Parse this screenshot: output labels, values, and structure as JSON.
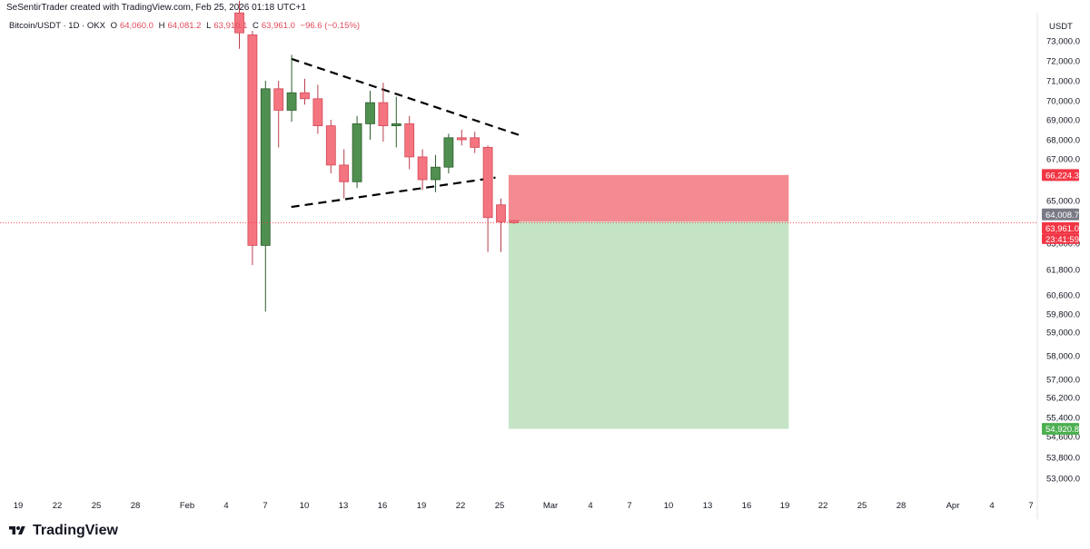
{
  "header": {
    "credit": "SeSentirTrader created with TradingView.com, Feb 25, 2026 01:18 UTC+1",
    "symbol": "Bitcoin/USDT · 1D · OKX",
    "ohlc": {
      "open_label": "O",
      "open": "64,060.0",
      "high_label": "H",
      "high": "64,081.2",
      "low_label": "L",
      "low": "63,910.1",
      "close_label": "C",
      "close": "63,961.0",
      "change": "−96.6 (−0.15%)"
    }
  },
  "currency": "USDT",
  "brand": {
    "name": "TradingView"
  },
  "colors": {
    "up": "#4f8f4f",
    "down": "#f4747f",
    "stop_zone": "#f48b92",
    "target_zone": "#c4e4c5",
    "price_line": "#f23645",
    "grid_text": "#131722"
  },
  "chart_data": {
    "type": "candlestick",
    "y_axis_ticks": [
      "73,000.0",
      "72,000.0",
      "71,000.0",
      "70,000.0",
      "69,000.0",
      "68,000.0",
      "67,000.0",
      "65,000.0",
      "63,000.0",
      "61,800.0",
      "60,600.0",
      "59,800.0",
      "59,000.0",
      "58,000.0",
      "57,000.0",
      "56,200.0",
      "55,400.0",
      "54,600.0",
      "53,800.0",
      "53,000.0"
    ],
    "x_axis_ticks": [
      "19",
      "22",
      "25",
      "28",
      "Feb",
      "4",
      "7",
      "10",
      "13",
      "16",
      "19",
      "22",
      "25",
      "Mar",
      "4",
      "7",
      "10",
      "13",
      "16",
      "19",
      "22",
      "25",
      "28",
      "Apr",
      "4",
      "7"
    ],
    "candles": [
      {
        "date": "Feb 4",
        "o": 74400,
        "h": 75000,
        "l": 72600,
        "c": 73400
      },
      {
        "date": "Feb 5",
        "o": 73300,
        "h": 73500,
        "l": 62000,
        "c": 62900
      },
      {
        "date": "Feb 6",
        "o": 62900,
        "h": 71000,
        "l": 59900,
        "c": 70600
      },
      {
        "date": "Feb 7",
        "o": 70600,
        "h": 71000,
        "l": 67600,
        "c": 69500
      },
      {
        "date": "Feb 8",
        "o": 69500,
        "h": 72300,
        "l": 68900,
        "c": 70400
      },
      {
        "date": "Feb 9",
        "o": 70400,
        "h": 71100,
        "l": 69800,
        "c": 70100
      },
      {
        "date": "Feb 10",
        "o": 70100,
        "h": 70800,
        "l": 68300,
        "c": 68700
      },
      {
        "date": "Feb 11",
        "o": 68700,
        "h": 69000,
        "l": 66300,
        "c": 66700
      },
      {
        "date": "Feb 12",
        "o": 66700,
        "h": 67500,
        "l": 65100,
        "c": 65900
      },
      {
        "date": "Feb 13",
        "o": 65900,
        "h": 69200,
        "l": 65600,
        "c": 68800
      },
      {
        "date": "Feb 14",
        "o": 68800,
        "h": 70500,
        "l": 68000,
        "c": 69900
      },
      {
        "date": "Feb 15",
        "o": 69900,
        "h": 70900,
        "l": 67900,
        "c": 68700
      },
      {
        "date": "Feb 16",
        "o": 68700,
        "h": 70200,
        "l": 67600,
        "c": 68800
      },
      {
        "date": "Feb 17",
        "o": 68800,
        "h": 69200,
        "l": 66500,
        "c": 67100
      },
      {
        "date": "Feb 18",
        "o": 67100,
        "h": 67500,
        "l": 65500,
        "c": 66000
      },
      {
        "date": "Feb 19",
        "o": 66000,
        "h": 67200,
        "l": 65400,
        "c": 66600
      },
      {
        "date": "Feb 20",
        "o": 66600,
        "h": 68300,
        "l": 66300,
        "c": 68100
      },
      {
        "date": "Feb 21",
        "o": 68100,
        "h": 68500,
        "l": 67700,
        "c": 68000
      },
      {
        "date": "Feb 22",
        "o": 68100,
        "h": 68400,
        "l": 67300,
        "c": 67600
      },
      {
        "date": "Feb 23",
        "o": 67600,
        "h": 67700,
        "l": 62600,
        "c": 64200
      },
      {
        "date": "Feb 24",
        "o": 64800,
        "h": 65100,
        "l": 62600,
        "c": 64000
      },
      {
        "date": "Feb 25",
        "o": 64060,
        "h": 64081.2,
        "l": 63910.1,
        "c": 63961
      }
    ],
    "triangle": {
      "upper": [
        {
          "date": "Feb 7",
          "price": 72100
        },
        {
          "date": "Feb 25",
          "price": 68200
        }
      ],
      "lower": [
        {
          "date": "Feb 7",
          "price": 64700
        },
        {
          "date": "Feb 24",
          "price": 66100
        }
      ]
    },
    "position": {
      "entry": 64008.7,
      "stop": 66224.3,
      "target": 54920.8,
      "start_date": "Feb 25",
      "end_date": "Mar 18"
    },
    "price_labels": {
      "stop": "66,224.3",
      "entry": "64,008.7",
      "last": "63,961.0",
      "countdown": "23:41:59",
      "target": "54,920.8"
    }
  }
}
